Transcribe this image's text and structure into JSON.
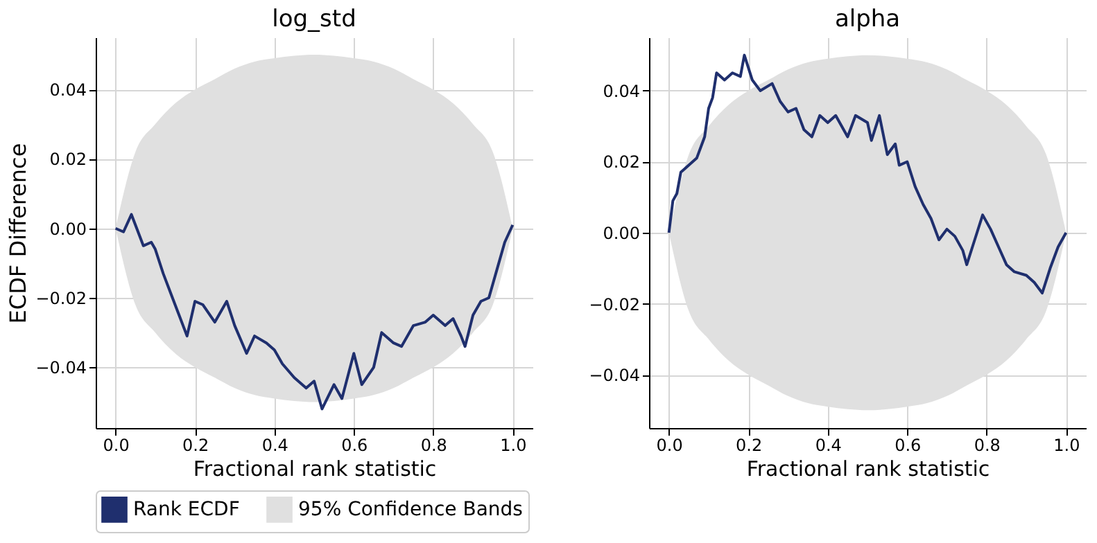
{
  "chart_data": [
    {
      "type": "line",
      "title": "log_std",
      "xlabel": "Fractional rank statistic",
      "ylabel": "ECDF Difference",
      "grid": true,
      "legend": "bottom",
      "xlim": [
        -0.05,
        1.05
      ],
      "ylim": [
        -0.0575,
        0.055
      ],
      "xticks": [
        {
          "value": 0,
          "label": "0.0"
        },
        {
          "value": 0.2,
          "label": "0.2"
        },
        {
          "value": 0.4,
          "label": "0.4"
        },
        {
          "value": 0.6,
          "label": "0.6"
        },
        {
          "value": 0.8,
          "label": "0.8"
        },
        {
          "value": 1,
          "label": "1.0"
        }
      ],
      "yticks": [
        {
          "value": -0.04,
          "label": "−0.04"
        },
        {
          "value": -0.02,
          "label": "−0.02"
        },
        {
          "value": 0,
          "label": "0.00"
        },
        {
          "value": 0.02,
          "label": "0.02"
        },
        {
          "value": 0.04,
          "label": "0.04"
        }
      ],
      "series": [
        {
          "name": "95% Confidence Bands",
          "type": "area",
          "color": "#e0e0e0",
          "x": [
            0,
            0.05,
            0.1,
            0.15,
            0.2,
            0.25,
            0.3,
            0.35,
            0.4,
            0.45,
            0.5,
            0.55,
            0.6,
            0.65,
            0.7,
            0.75,
            0.8,
            0.85,
            0.9,
            0.95,
            1.0
          ],
          "values": [
            null,
            null,
            null,
            null,
            null,
            null,
            null,
            null,
            null,
            null,
            null,
            null,
            null,
            null,
            null,
            null,
            null,
            null,
            null,
            null,
            null
          ],
          "upper": [
            0,
            0.022,
            0.03,
            0.036,
            0.04,
            0.043,
            0.046,
            0.048,
            0.049,
            0.0497,
            0.05,
            0.0497,
            0.049,
            0.048,
            0.046,
            0.043,
            0.04,
            0.036,
            0.03,
            0.022,
            0
          ],
          "lower": [
            0,
            -0.022,
            -0.03,
            -0.036,
            -0.04,
            -0.043,
            -0.046,
            -0.048,
            -0.049,
            -0.0497,
            -0.05,
            -0.0497,
            -0.049,
            -0.048,
            -0.046,
            -0.043,
            -0.04,
            -0.036,
            -0.03,
            -0.022,
            0
          ]
        },
        {
          "name": "Rank ECDF",
          "color": "#1f2f6e",
          "x": [
            0,
            0.02,
            0.04,
            0.05,
            0.07,
            0.09,
            0.1,
            0.12,
            0.14,
            0.16,
            0.18,
            0.2,
            0.22,
            0.25,
            0.28,
            0.3,
            0.33,
            0.35,
            0.38,
            0.4,
            0.42,
            0.45,
            0.48,
            0.5,
            0.52,
            0.55,
            0.57,
            0.6,
            0.62,
            0.65,
            0.67,
            0.7,
            0.72,
            0.75,
            0.78,
            0.8,
            0.83,
            0.85,
            0.87,
            0.88,
            0.9,
            0.92,
            0.94,
            0.96,
            0.98,
            1.0
          ],
          "values": [
            0,
            -0.001,
            0.004,
            0.001,
            -0.005,
            -0.004,
            -0.006,
            -0.013,
            -0.019,
            -0.025,
            -0.031,
            -0.021,
            -0.022,
            -0.027,
            -0.021,
            -0.028,
            -0.036,
            -0.031,
            -0.033,
            -0.035,
            -0.039,
            -0.043,
            -0.046,
            -0.044,
            -0.052,
            -0.045,
            -0.049,
            -0.036,
            -0.045,
            -0.04,
            -0.03,
            -0.033,
            -0.034,
            -0.028,
            -0.027,
            -0.025,
            -0.028,
            -0.026,
            -0.031,
            -0.034,
            -0.025,
            -0.021,
            -0.02,
            -0.012,
            -0.004,
            0.001
          ]
        }
      ]
    },
    {
      "type": "line",
      "title": "alpha",
      "xlabel": "Fractional rank statistic",
      "grid": true,
      "xlim": [
        -0.05,
        1.05
      ],
      "ylim": [
        -0.055,
        0.055
      ],
      "xticks": [
        {
          "value": 0,
          "label": "0.0"
        },
        {
          "value": 0.2,
          "label": "0.2"
        },
        {
          "value": 0.4,
          "label": "0.4"
        },
        {
          "value": 0.6,
          "label": "0.6"
        },
        {
          "value": 0.8,
          "label": "0.8"
        },
        {
          "value": 1,
          "label": "1.0"
        }
      ],
      "yticks": [
        {
          "value": -0.04,
          "label": "−0.04"
        },
        {
          "value": -0.02,
          "label": "−0.02"
        },
        {
          "value": 0,
          "label": "0.00"
        },
        {
          "value": 0.02,
          "label": "0.02"
        },
        {
          "value": 0.04,
          "label": "0.04"
        }
      ],
      "series": [
        {
          "type": "area",
          "color": "#e0e0e0",
          "x": [
            0,
            0.05,
            0.1,
            0.15,
            0.2,
            0.25,
            0.3,
            0.35,
            0.4,
            0.45,
            0.5,
            0.55,
            0.6,
            0.65,
            0.7,
            0.75,
            0.8,
            0.85,
            0.9,
            0.95,
            1.0
          ],
          "values": [
            null,
            null,
            null,
            null,
            null,
            null,
            null,
            null,
            null,
            null,
            null,
            null,
            null,
            null,
            null,
            null,
            null,
            null,
            null,
            null,
            null
          ],
          "upper": [
            0,
            0.022,
            0.03,
            0.036,
            0.04,
            0.043,
            0.046,
            0.048,
            0.049,
            0.0497,
            0.05,
            0.0497,
            0.049,
            0.048,
            0.046,
            0.043,
            0.04,
            0.036,
            0.03,
            0.022,
            0
          ],
          "lower": [
            0,
            -0.022,
            -0.03,
            -0.036,
            -0.04,
            -0.043,
            -0.046,
            -0.048,
            -0.049,
            -0.0497,
            -0.05,
            -0.0497,
            -0.049,
            -0.048,
            -0.046,
            -0.043,
            -0.04,
            -0.036,
            -0.03,
            -0.022,
            0
          ]
        },
        {
          "color": "#1f2f6e",
          "x": [
            0,
            0.01,
            0.02,
            0.03,
            0.05,
            0.07,
            0.09,
            0.1,
            0.11,
            0.12,
            0.14,
            0.16,
            0.18,
            0.19,
            0.21,
            0.23,
            0.26,
            0.28,
            0.3,
            0.32,
            0.34,
            0.36,
            0.38,
            0.4,
            0.42,
            0.45,
            0.47,
            0.5,
            0.51,
            0.53,
            0.55,
            0.57,
            0.58,
            0.6,
            0.62,
            0.64,
            0.66,
            0.68,
            0.7,
            0.72,
            0.74,
            0.75,
            0.77,
            0.79,
            0.81,
            0.83,
            0.85,
            0.87,
            0.9,
            0.92,
            0.94,
            0.96,
            0.98,
            1.0
          ],
          "values": [
            0,
            0.009,
            0.011,
            0.017,
            0.019,
            0.021,
            0.027,
            0.035,
            0.038,
            0.045,
            0.043,
            0.045,
            0.044,
            0.05,
            0.043,
            0.04,
            0.042,
            0.037,
            0.034,
            0.035,
            0.029,
            0.027,
            0.033,
            0.031,
            0.033,
            0.027,
            0.033,
            0.031,
            0.026,
            0.033,
            0.022,
            0.025,
            0.019,
            0.02,
            0.013,
            0.008,
            0.004,
            -0.002,
            0.001,
            -0.001,
            -0.005,
            -0.009,
            -0.002,
            0.005,
            0.001,
            -0.004,
            -0.009,
            -0.011,
            -0.012,
            -0.014,
            -0.017,
            -0.01,
            -0.004,
            0
          ]
        }
      ]
    }
  ]
}
